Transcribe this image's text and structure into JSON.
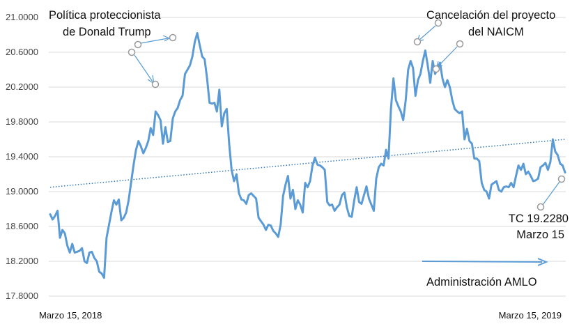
{
  "chart_data": {
    "type": "line",
    "title": "",
    "xlabel": "",
    "ylabel": "",
    "ylim": [
      17.8,
      21.0
    ],
    "yticks": [
      "17.8000",
      "18.2000",
      "18.6000",
      "19.0000",
      "19.4000",
      "19.8000",
      "20.2000",
      "20.6000",
      "21.0000"
    ],
    "ytick_values": [
      17.8,
      18.2,
      18.6,
      19.0,
      19.4,
      19.8,
      20.2,
      20.6,
      21.0
    ],
    "x_start_label": "Marzo 15, 2018",
    "x_end_label": "Marzo 15, 2019",
    "grid": "horizontal",
    "colors": {
      "series": "#5b9bd5",
      "trend": "#2e75b6",
      "marker": "#999999"
    },
    "series": [
      {
        "values": [
          18.74,
          18.68,
          18.72,
          18.78,
          18.47,
          18.56,
          18.52,
          18.38,
          18.3,
          18.4,
          18.3,
          18.31,
          18.32,
          18.35,
          18.2,
          18.18,
          18.3,
          18.31,
          18.24,
          18.2,
          18.08,
          18.06,
          18.01,
          18.47,
          18.62,
          18.77,
          18.9,
          18.85,
          18.91,
          18.67,
          18.7,
          18.76,
          18.9,
          19.1,
          19.3,
          19.48,
          19.58,
          19.52,
          19.44,
          19.5,
          19.58,
          19.73,
          19.65,
          19.92,
          19.88,
          19.82,
          19.55,
          19.74,
          19.57,
          19.58,
          19.84,
          19.92,
          19.96,
          20.05,
          20.1,
          20.35,
          20.4,
          20.45,
          20.55,
          20.72,
          20.82,
          20.68,
          20.55,
          20.52,
          20.3,
          20.02,
          20.01,
          20.02,
          19.92,
          20.17,
          19.75,
          19.9,
          19.95,
          19.55,
          19.25,
          19.12,
          19.2,
          18.98,
          18.91,
          18.9,
          18.86,
          18.96,
          18.98,
          18.95,
          18.92,
          18.7,
          18.66,
          18.62,
          18.56,
          18.62,
          18.61,
          18.55,
          18.52,
          18.48,
          18.62,
          18.95,
          19.08,
          19.18,
          18.92,
          19.02,
          18.8,
          18.9,
          18.85,
          18.76,
          19.1,
          19.05,
          19.12,
          19.3,
          19.39,
          19.31,
          19.3,
          19.28,
          19.25,
          18.88,
          18.84,
          18.85,
          18.78,
          18.82,
          18.85,
          18.96,
          18.99,
          18.82,
          18.72,
          18.71,
          18.9,
          19.05,
          18.88,
          18.86,
          18.96,
          19.06,
          18.92,
          18.85,
          18.78,
          19.15,
          19.28,
          19.32,
          19.3,
          19.48,
          19.38,
          19.95,
          20.3,
          20.05,
          19.98,
          19.92,
          19.82,
          20.05,
          20.4,
          20.5,
          20.42,
          20.1,
          20.28,
          20.35,
          20.5,
          20.62,
          20.45,
          20.25,
          20.5,
          20.35,
          20.42,
          20.48,
          20.3,
          20.2,
          20.28,
          20.2,
          20.05,
          19.95,
          19.92,
          19.9,
          19.92,
          19.6,
          19.72,
          19.58,
          19.55,
          19.38,
          19.38,
          19.35,
          19.1,
          19.02,
          19.0,
          18.92,
          19.08,
          19.1,
          19.12,
          19.02,
          19.0,
          19.05,
          19.06,
          19.05,
          19.1,
          19.05,
          19.18,
          19.3,
          19.25,
          19.32,
          19.2,
          19.23,
          19.18,
          19.12,
          19.13,
          19.15,
          19.28,
          19.3,
          19.33,
          19.25,
          19.34,
          19.6,
          19.46,
          19.42,
          19.32,
          19.3,
          19.22
        ]
      }
    ],
    "trendline": {
      "style": "dotted",
      "start_value": 19.05,
      "end_value": 19.6
    },
    "annotations": [
      {
        "id": "proteccionista",
        "lines": [
          "Política proteccionista",
          "de Donald Trump"
        ]
      },
      {
        "id": "naicm",
        "lines": [
          "Cancelación del proyecto",
          "del NAICM"
        ]
      },
      {
        "id": "tc",
        "lines": [
          "TC 19.2280",
          "Marzo 15"
        ]
      },
      {
        "id": "amlo",
        "lines": [
          "Administración AMLO"
        ]
      }
    ]
  }
}
